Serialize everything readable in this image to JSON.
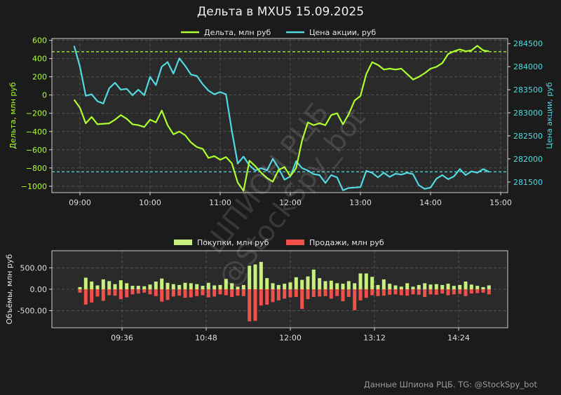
{
  "title": "Дельта в MXU5 15.09.2025",
  "footer": "Данные Шпиона РЦБ. TG: @StockSpy_bot",
  "watermark": {
    "line1": "ШПИОН РЦБ",
    "line2": "@StockSpy_bot"
  },
  "colors": {
    "background": "#1b1b1b",
    "plot_bg": "#2a2a2a",
    "delta": "#adff2f",
    "price": "#52d8e0",
    "buy": "#c8f07e",
    "sell": "#f0504a",
    "grid": "#5a5a5a",
    "axis": "#dddddd"
  },
  "chart_data": [
    {
      "type": "line",
      "legend": [
        "Дельта, млн руб",
        "Цена акции, руб"
      ],
      "legend_position": "top",
      "xlim": [
        "08:36",
        "15:06"
      ],
      "x_ticks": [
        "09:00",
        "10:00",
        "11:00",
        "12:00",
        "13:00",
        "14:00",
        "15:00"
      ],
      "grid": true,
      "left_axis": {
        "label": "Дельта, млн руб",
        "ylim": [
          -1070,
          620
        ],
        "ticks": [
          600,
          400,
          200,
          0,
          -200,
          -400,
          -600,
          -800,
          -1000
        ],
        "tick_labels": [
          "600",
          "400",
          "200",
          "0",
          "−200",
          "−400",
          "−600",
          "−800",
          "−1000"
        ]
      },
      "right_axis": {
        "label": "Цена акции, руб",
        "ylim": [
          281270,
          284610
        ],
        "ticks": [
          284500,
          284000,
          283500,
          283000,
          282500,
          282000,
          281500
        ],
        "tick_labels": [
          "284500",
          "284000",
          "283500",
          "283000",
          "282500",
          "282000",
          "281500"
        ]
      },
      "hlines": [
        {
          "series": "Дельта, млн руб",
          "y": 475
        },
        {
          "series": "Цена акции, руб",
          "y": 281720
        }
      ],
      "series": [
        {
          "name": "Дельта, млн руб",
          "axis": "left",
          "x": [
            "08:55",
            "09:00",
            "09:05",
            "09:10",
            "09:15",
            "09:25",
            "09:30",
            "09:35",
            "09:40",
            "09:45",
            "09:50",
            "09:55",
            "10:00",
            "10:05",
            "10:10",
            "10:15",
            "10:20",
            "10:25",
            "10:30",
            "10:35",
            "10:40",
            "10:45",
            "10:50",
            "10:55",
            "11:00",
            "11:05",
            "11:10",
            "11:15",
            "11:20",
            "11:25",
            "11:30",
            "11:35",
            "11:40",
            "11:45",
            "11:50",
            "11:55",
            "12:00",
            "12:05",
            "12:10",
            "12:15",
            "12:20",
            "12:25",
            "12:30",
            "12:35",
            "12:40",
            "12:45",
            "12:50",
            "12:55",
            "13:00",
            "13:05",
            "13:10",
            "13:15",
            "13:20",
            "13:25",
            "13:30",
            "13:35",
            "13:40",
            "13:45",
            "13:50",
            "13:55",
            "14:00",
            "14:05",
            "14:10",
            "14:15",
            "14:20",
            "14:25",
            "14:30",
            "14:35",
            "14:40",
            "14:45",
            "14:50"
          ],
          "values": [
            -50,
            -140,
            -310,
            -240,
            -320,
            -310,
            -270,
            -220,
            -260,
            -320,
            -330,
            -350,
            -270,
            -300,
            -170,
            -330,
            -430,
            -400,
            -440,
            -520,
            -570,
            -590,
            -690,
            -670,
            -710,
            -680,
            -750,
            -960,
            -1050,
            -720,
            -780,
            -850,
            -910,
            -950,
            -820,
            -790,
            -890,
            -800,
            -500,
            -300,
            -330,
            -310,
            -330,
            -220,
            -200,
            -320,
            -210,
            -60,
            -10,
            230,
            360,
            330,
            280,
            290,
            280,
            290,
            230,
            170,
            200,
            240,
            290,
            310,
            350,
            450,
            480,
            500,
            480,
            490,
            540,
            490,
            480
          ]
        },
        {
          "name": "Цена акции, руб",
          "axis": "right",
          "x": [
            "08:55",
            "09:00",
            "09:05",
            "09:10",
            "09:15",
            "09:20",
            "09:25",
            "09:30",
            "09:35",
            "09:40",
            "09:45",
            "09:50",
            "09:55",
            "10:00",
            "10:05",
            "10:10",
            "10:15",
            "10:20",
            "10:25",
            "10:30",
            "10:35",
            "10:40",
            "10:45",
            "10:50",
            "10:55",
            "11:00",
            "11:05",
            "11:10",
            "11:15",
            "11:20",
            "11:25",
            "11:30",
            "11:35",
            "11:40",
            "11:45",
            "11:50",
            "11:55",
            "12:00",
            "12:05",
            "12:10",
            "12:15",
            "12:20",
            "12:25",
            "12:30",
            "12:35",
            "12:40",
            "12:45",
            "12:50",
            "12:55",
            "13:00",
            "13:05",
            "13:10",
            "13:15",
            "13:20",
            "13:25",
            "13:30",
            "13:35",
            "13:40",
            "13:45",
            "13:50",
            "13:55",
            "14:00",
            "14:05",
            "14:10",
            "14:15",
            "14:20",
            "14:25",
            "14:30",
            "14:35",
            "14:40",
            "14:45",
            "14:50"
          ],
          "values": [
            284450,
            284000,
            283370,
            283400,
            283250,
            283200,
            283530,
            283650,
            283500,
            283520,
            283380,
            283500,
            283380,
            283780,
            283600,
            284000,
            284100,
            283850,
            284180,
            284020,
            283830,
            283800,
            283620,
            283480,
            283400,
            283450,
            283400,
            282600,
            281900,
            282050,
            281860,
            281750,
            281800,
            281750,
            282000,
            281800,
            281550,
            281620,
            281950,
            281800,
            281750,
            281670,
            281650,
            281480,
            281650,
            281600,
            281320,
            281370,
            281380,
            281390,
            281740,
            281700,
            281600,
            281700,
            281610,
            281680,
            281660,
            281700,
            281670,
            281430,
            281350,
            281380,
            281570,
            281650,
            281560,
            281620,
            281780,
            281650,
            281730,
            281700,
            281780,
            281720
          ]
        }
      ]
    },
    {
      "type": "bar",
      "legend": [
        "Покупки, млн руб",
        "Продажи, млн руб"
      ],
      "legend_position": "top",
      "ylabel": "Объёмы, млн руб",
      "ylim": [
        -900,
        900
      ],
      "y_ticks": [
        500,
        0,
        -500
      ],
      "y_tick_labels": [
        "500.00",
        "0.00",
        "-500.00"
      ],
      "xlim": [
        "08:36",
        "15:06"
      ],
      "x_ticks": [
        "09:36",
        "10:48",
        "12:00",
        "13:12",
        "14:24"
      ],
      "grid": true,
      "x": [
        "09:00",
        "09:05",
        "09:10",
        "09:15",
        "09:20",
        "09:25",
        "09:30",
        "09:35",
        "09:40",
        "09:45",
        "09:50",
        "09:55",
        "10:00",
        "10:05",
        "10:10",
        "10:15",
        "10:20",
        "10:25",
        "10:30",
        "10:35",
        "10:40",
        "10:45",
        "10:50",
        "10:55",
        "11:00",
        "11:05",
        "11:10",
        "11:15",
        "11:20",
        "11:25",
        "11:30",
        "11:35",
        "11:40",
        "11:45",
        "11:50",
        "11:55",
        "12:00",
        "12:05",
        "12:10",
        "12:15",
        "12:20",
        "12:25",
        "12:30",
        "12:35",
        "12:40",
        "12:45",
        "12:50",
        "12:55",
        "13:00",
        "13:05",
        "13:10",
        "13:15",
        "13:20",
        "13:25",
        "13:30",
        "13:35",
        "13:40",
        "13:45",
        "13:50",
        "13:55",
        "14:00",
        "14:05",
        "14:10",
        "14:15",
        "14:20",
        "14:25",
        "14:30",
        "14:35",
        "14:40",
        "14:45",
        "14:50"
      ],
      "series": [
        {
          "name": "Покупки, млн руб",
          "values": [
            50,
            270,
            180,
            90,
            230,
            190,
            120,
            210,
            140,
            80,
            80,
            70,
            110,
            180,
            250,
            150,
            120,
            100,
            150,
            140,
            120,
            80,
            150,
            90,
            100,
            240,
            140,
            60,
            100,
            550,
            580,
            640,
            260,
            140,
            100,
            130,
            160,
            280,
            220,
            300,
            460,
            260,
            190,
            200,
            140,
            130,
            190,
            140,
            370,
            370,
            290,
            100,
            230,
            130,
            90,
            60,
            140,
            60,
            100,
            140,
            110,
            120,
            100,
            130,
            80,
            100,
            180,
            110,
            80,
            50,
            90
          ]
        },
        {
          "name": "Продажи, млн руб",
          "values": [
            -80,
            -360,
            -310,
            -170,
            -270,
            -140,
            -150,
            -230,
            -190,
            -120,
            -100,
            -80,
            -120,
            -160,
            -290,
            -250,
            -170,
            -150,
            -200,
            -190,
            -160,
            -140,
            -190,
            -170,
            -120,
            -140,
            -180,
            -150,
            -160,
            -750,
            -740,
            -380,
            -360,
            -300,
            -260,
            -220,
            -190,
            -180,
            -460,
            -230,
            -180,
            -170,
            -160,
            -220,
            -160,
            -280,
            -180,
            -490,
            -260,
            -200,
            -140,
            -160,
            -150,
            -130,
            -120,
            -140,
            -150,
            -120,
            -130,
            -180,
            -120,
            -130,
            -100,
            -140,
            -120,
            -110,
            -160,
            -100,
            -90,
            -80,
            -120
          ]
        }
      ]
    }
  ]
}
